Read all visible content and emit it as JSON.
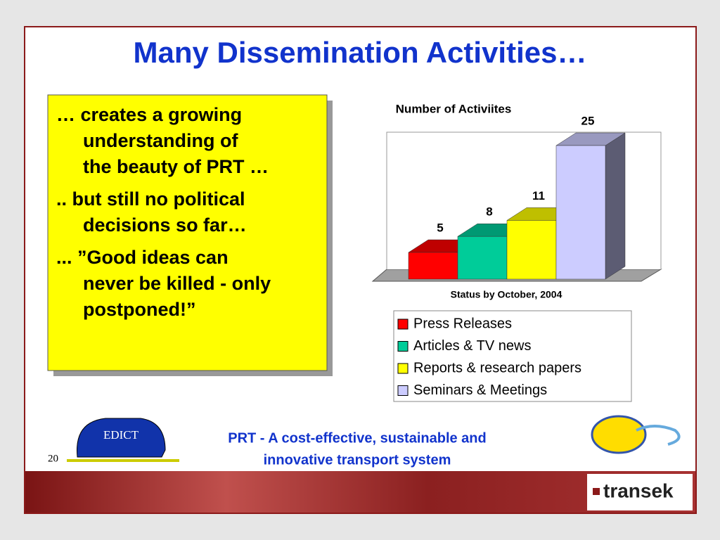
{
  "slide": {
    "title": "Many Dissemination Activities…",
    "bullets": [
      [
        "… creates a growing",
        "understanding of",
        "the beauty of PRT …"
      ],
      [
        ".. but still no political",
        "decisions so far…"
      ],
      [
        "... ”Good ideas can",
        "never be killed - only",
        "postponed!”"
      ]
    ],
    "footer": [
      "PRT - A cost-effective, sustainable and",
      "innovative transport system"
    ],
    "page_number": "20",
    "logo_left": "EDICT",
    "logo_right": "transek"
  },
  "chart_data": {
    "type": "bar3d",
    "title": "Number of Activiites",
    "x_label": "Status by October, 2004",
    "ylim": [
      0,
      26
    ],
    "series": [
      {
        "name": "Press Releases",
        "color": "#ff0000",
        "values": [
          5
        ]
      },
      {
        "name": "Articles &  TV news",
        "color": "#00cc99",
        "values": [
          8
        ]
      },
      {
        "name": "Reports & research papers",
        "color": "#ffff00",
        "values": [
          11
        ]
      },
      {
        "name": "Seminars & Meetings",
        "color": "#ccccff",
        "values": [
          25
        ]
      }
    ]
  }
}
